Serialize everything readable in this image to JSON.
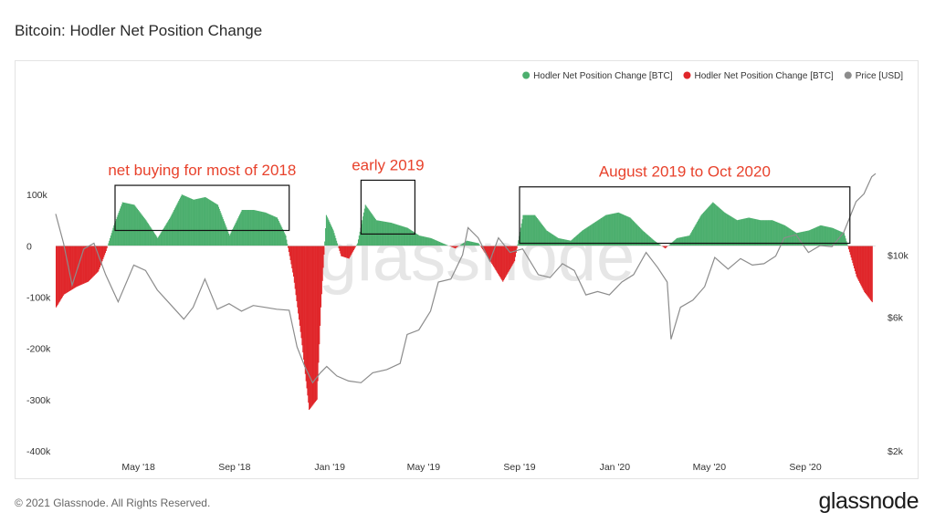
{
  "page": {
    "title": "Bitcoin: Hodler Net Position Change",
    "copyright": "© 2021 Glassnode. All Rights Reserved.",
    "logo": "glassnode",
    "watermark": "glassnode"
  },
  "colors": {
    "positive": "#4caf6e",
    "negative": "#e0262a",
    "price": "#8c8c8c",
    "annotation_text": "#e8422c",
    "box": "#111111"
  },
  "chart_data": {
    "type": "bar",
    "legend_position": "top-right",
    "legend": [
      {
        "label": "Hodler Net Position Change [BTC]",
        "color": "#4caf6e"
      },
      {
        "label": "Hodler Net Position Change [BTC]",
        "color": "#e0262a"
      },
      {
        "label": "Price [USD]",
        "color": "#8c8c8c"
      }
    ],
    "x_axis": {
      "range": [
        "2018-01-15",
        "2020-11-30"
      ],
      "ticks": [
        {
          "date": "2018-05-01",
          "label": "May '18"
        },
        {
          "date": "2018-09-01",
          "label": "Sep '18"
        },
        {
          "date": "2019-01-01",
          "label": "Jan '19"
        },
        {
          "date": "2019-05-01",
          "label": "May '19"
        },
        {
          "date": "2019-09-01",
          "label": "Sep '19"
        },
        {
          "date": "2020-01-01",
          "label": "Jan '20"
        },
        {
          "date": "2020-05-01",
          "label": "May '20"
        },
        {
          "date": "2020-09-01",
          "label": "Sep '20"
        }
      ]
    },
    "y_left": {
      "range": [
        -400000,
        200000
      ],
      "ticks": [
        {
          "value": 100000,
          "label": "100k"
        },
        {
          "value": 0,
          "label": "0"
        },
        {
          "value": -100000,
          "label": "-100k"
        },
        {
          "value": -200000,
          "label": "-200k"
        },
        {
          "value": -300000,
          "label": "-300k"
        },
        {
          "value": -400000,
          "label": "-400k"
        }
      ]
    },
    "y_right": {
      "scale": "log",
      "range": [
        2000,
        25000
      ],
      "ticks": [
        {
          "value": 10000,
          "label": "$10k"
        },
        {
          "value": 6000,
          "label": "$6k"
        },
        {
          "value": 2000,
          "label": "$2k"
        }
      ]
    },
    "hodler_series": {
      "name": "Hodler Net Position Change [BTC]",
      "points": [
        [
          "2018-01-15",
          -120000
        ],
        [
          "2018-01-25",
          -95000
        ],
        [
          "2018-02-10",
          -80000
        ],
        [
          "2018-02-25",
          -70000
        ],
        [
          "2018-03-10",
          -50000
        ],
        [
          "2018-03-20",
          -10000
        ],
        [
          "2018-03-30",
          40000
        ],
        [
          "2018-04-10",
          85000
        ],
        [
          "2018-04-25",
          80000
        ],
        [
          "2018-05-10",
          50000
        ],
        [
          "2018-05-25",
          15000
        ],
        [
          "2018-06-10",
          55000
        ],
        [
          "2018-06-25",
          100000
        ],
        [
          "2018-07-10",
          90000
        ],
        [
          "2018-07-25",
          95000
        ],
        [
          "2018-08-10",
          80000
        ],
        [
          "2018-08-25",
          20000
        ],
        [
          "2018-09-10",
          70000
        ],
        [
          "2018-09-25",
          70000
        ],
        [
          "2018-10-10",
          65000
        ],
        [
          "2018-10-25",
          55000
        ],
        [
          "2018-11-05",
          20000
        ],
        [
          "2018-11-15",
          -60000
        ],
        [
          "2018-11-25",
          -180000
        ],
        [
          "2018-12-05",
          -320000
        ],
        [
          "2018-12-15",
          -300000
        ],
        [
          "2018-12-20",
          -120000
        ],
        [
          "2018-12-27",
          60000
        ],
        [
          "2019-01-05",
          30000
        ],
        [
          "2019-01-15",
          -20000
        ],
        [
          "2019-01-25",
          -25000
        ],
        [
          "2019-02-05",
          5000
        ],
        [
          "2019-02-15",
          80000
        ],
        [
          "2019-03-01",
          50000
        ],
        [
          "2019-03-20",
          45000
        ],
        [
          "2019-04-10",
          35000
        ],
        [
          "2019-04-25",
          20000
        ],
        [
          "2019-05-10",
          15000
        ],
        [
          "2019-05-25",
          5000
        ],
        [
          "2019-06-10",
          -5000
        ],
        [
          "2019-06-25",
          10000
        ],
        [
          "2019-07-10",
          5000
        ],
        [
          "2019-07-25",
          -30000
        ],
        [
          "2019-08-10",
          -70000
        ],
        [
          "2019-08-25",
          -30000
        ],
        [
          "2019-09-05",
          60000
        ],
        [
          "2019-09-20",
          60000
        ],
        [
          "2019-10-05",
          30000
        ],
        [
          "2019-10-20",
          15000
        ],
        [
          "2019-11-05",
          10000
        ],
        [
          "2019-11-20",
          30000
        ],
        [
          "2019-12-05",
          45000
        ],
        [
          "2019-12-20",
          60000
        ],
        [
          "2020-01-05",
          65000
        ],
        [
          "2020-01-20",
          55000
        ],
        [
          "2020-02-05",
          30000
        ],
        [
          "2020-02-20",
          10000
        ],
        [
          "2020-03-05",
          -5000
        ],
        [
          "2020-03-20",
          15000
        ],
        [
          "2020-04-05",
          20000
        ],
        [
          "2020-04-20",
          60000
        ],
        [
          "2020-05-05",
          85000
        ],
        [
          "2020-05-20",
          65000
        ],
        [
          "2020-06-05",
          50000
        ],
        [
          "2020-06-20",
          55000
        ],
        [
          "2020-07-05",
          50000
        ],
        [
          "2020-07-20",
          50000
        ],
        [
          "2020-08-05",
          40000
        ],
        [
          "2020-08-20",
          25000
        ],
        [
          "2020-09-05",
          30000
        ],
        [
          "2020-09-20",
          40000
        ],
        [
          "2020-10-05",
          35000
        ],
        [
          "2020-10-20",
          25000
        ],
        [
          "2020-11-05",
          -60000
        ],
        [
          "2020-11-15",
          -90000
        ],
        [
          "2020-11-25",
          -110000
        ]
      ]
    },
    "price_series": {
      "name": "Price [USD]",
      "points": [
        [
          "2018-01-15",
          14000
        ],
        [
          "2018-01-25",
          11000
        ],
        [
          "2018-02-05",
          7800
        ],
        [
          "2018-02-20",
          10500
        ],
        [
          "2018-03-05",
          11000
        ],
        [
          "2018-03-20",
          8500
        ],
        [
          "2018-04-05",
          6800
        ],
        [
          "2018-04-25",
          9200
        ],
        [
          "2018-05-10",
          8800
        ],
        [
          "2018-05-25",
          7500
        ],
        [
          "2018-06-10",
          6700
        ],
        [
          "2018-06-28",
          5900
        ],
        [
          "2018-07-10",
          6500
        ],
        [
          "2018-07-25",
          8200
        ],
        [
          "2018-08-10",
          6400
        ],
        [
          "2018-08-25",
          6700
        ],
        [
          "2018-09-10",
          6300
        ],
        [
          "2018-09-25",
          6600
        ],
        [
          "2018-10-10",
          6500
        ],
        [
          "2018-10-25",
          6400
        ],
        [
          "2018-11-10",
          6350
        ],
        [
          "2018-11-20",
          4700
        ],
        [
          "2018-11-30",
          4000
        ],
        [
          "2018-12-10",
          3500
        ],
        [
          "2018-12-20",
          3800
        ],
        [
          "2018-12-28",
          4000
        ],
        [
          "2019-01-10",
          3700
        ],
        [
          "2019-01-25",
          3550
        ],
        [
          "2019-02-10",
          3500
        ],
        [
          "2019-02-25",
          3800
        ],
        [
          "2019-03-15",
          3900
        ],
        [
          "2019-04-01",
          4100
        ],
        [
          "2019-04-10",
          5200
        ],
        [
          "2019-04-25",
          5400
        ],
        [
          "2019-05-10",
          6300
        ],
        [
          "2019-05-20",
          8000
        ],
        [
          "2019-06-05",
          8200
        ],
        [
          "2019-06-20",
          10000
        ],
        [
          "2019-06-27",
          12500
        ],
        [
          "2019-07-10",
          11500
        ],
        [
          "2019-07-25",
          9500
        ],
        [
          "2019-08-05",
          11500
        ],
        [
          "2019-08-20",
          10200
        ],
        [
          "2019-09-05",
          10500
        ],
        [
          "2019-09-25",
          8500
        ],
        [
          "2019-10-10",
          8300
        ],
        [
          "2019-10-26",
          9300
        ],
        [
          "2019-11-10",
          8800
        ],
        [
          "2019-11-25",
          7200
        ],
        [
          "2019-12-10",
          7400
        ],
        [
          "2019-12-25",
          7200
        ],
        [
          "2020-01-10",
          8000
        ],
        [
          "2020-01-25",
          8500
        ],
        [
          "2020-02-10",
          10200
        ],
        [
          "2020-02-25",
          9000
        ],
        [
          "2020-03-08",
          8000
        ],
        [
          "2020-03-13",
          5000
        ],
        [
          "2020-03-25",
          6500
        ],
        [
          "2020-04-10",
          6900
        ],
        [
          "2020-04-25",
          7700
        ],
        [
          "2020-05-08",
          9800
        ],
        [
          "2020-05-25",
          8900
        ],
        [
          "2020-06-10",
          9700
        ],
        [
          "2020-06-25",
          9200
        ],
        [
          "2020-07-10",
          9300
        ],
        [
          "2020-07-25",
          9900
        ],
        [
          "2020-08-05",
          11500
        ],
        [
          "2020-08-20",
          11800
        ],
        [
          "2020-09-05",
          10200
        ],
        [
          "2020-09-20",
          10800
        ],
        [
          "2020-10-05",
          10700
        ],
        [
          "2020-10-20",
          12000
        ],
        [
          "2020-11-05",
          15500
        ],
        [
          "2020-11-15",
          16500
        ],
        [
          "2020-11-25",
          19000
        ],
        [
          "2020-11-30",
          19500
        ]
      ]
    },
    "annotations": [
      {
        "label": "net buying for most of 2018",
        "start": "2018-04-01",
        "end": "2018-11-10",
        "top": 118000,
        "bottom": 30000
      },
      {
        "label": "early 2019",
        "start": "2019-02-10",
        "end": "2019-04-20",
        "top": 128000,
        "bottom": 23000
      },
      {
        "label": "August 2019 to Oct 2020",
        "start": "2019-09-01",
        "end": "2020-10-28",
        "top": 115000,
        "bottom": 5000
      }
    ]
  }
}
